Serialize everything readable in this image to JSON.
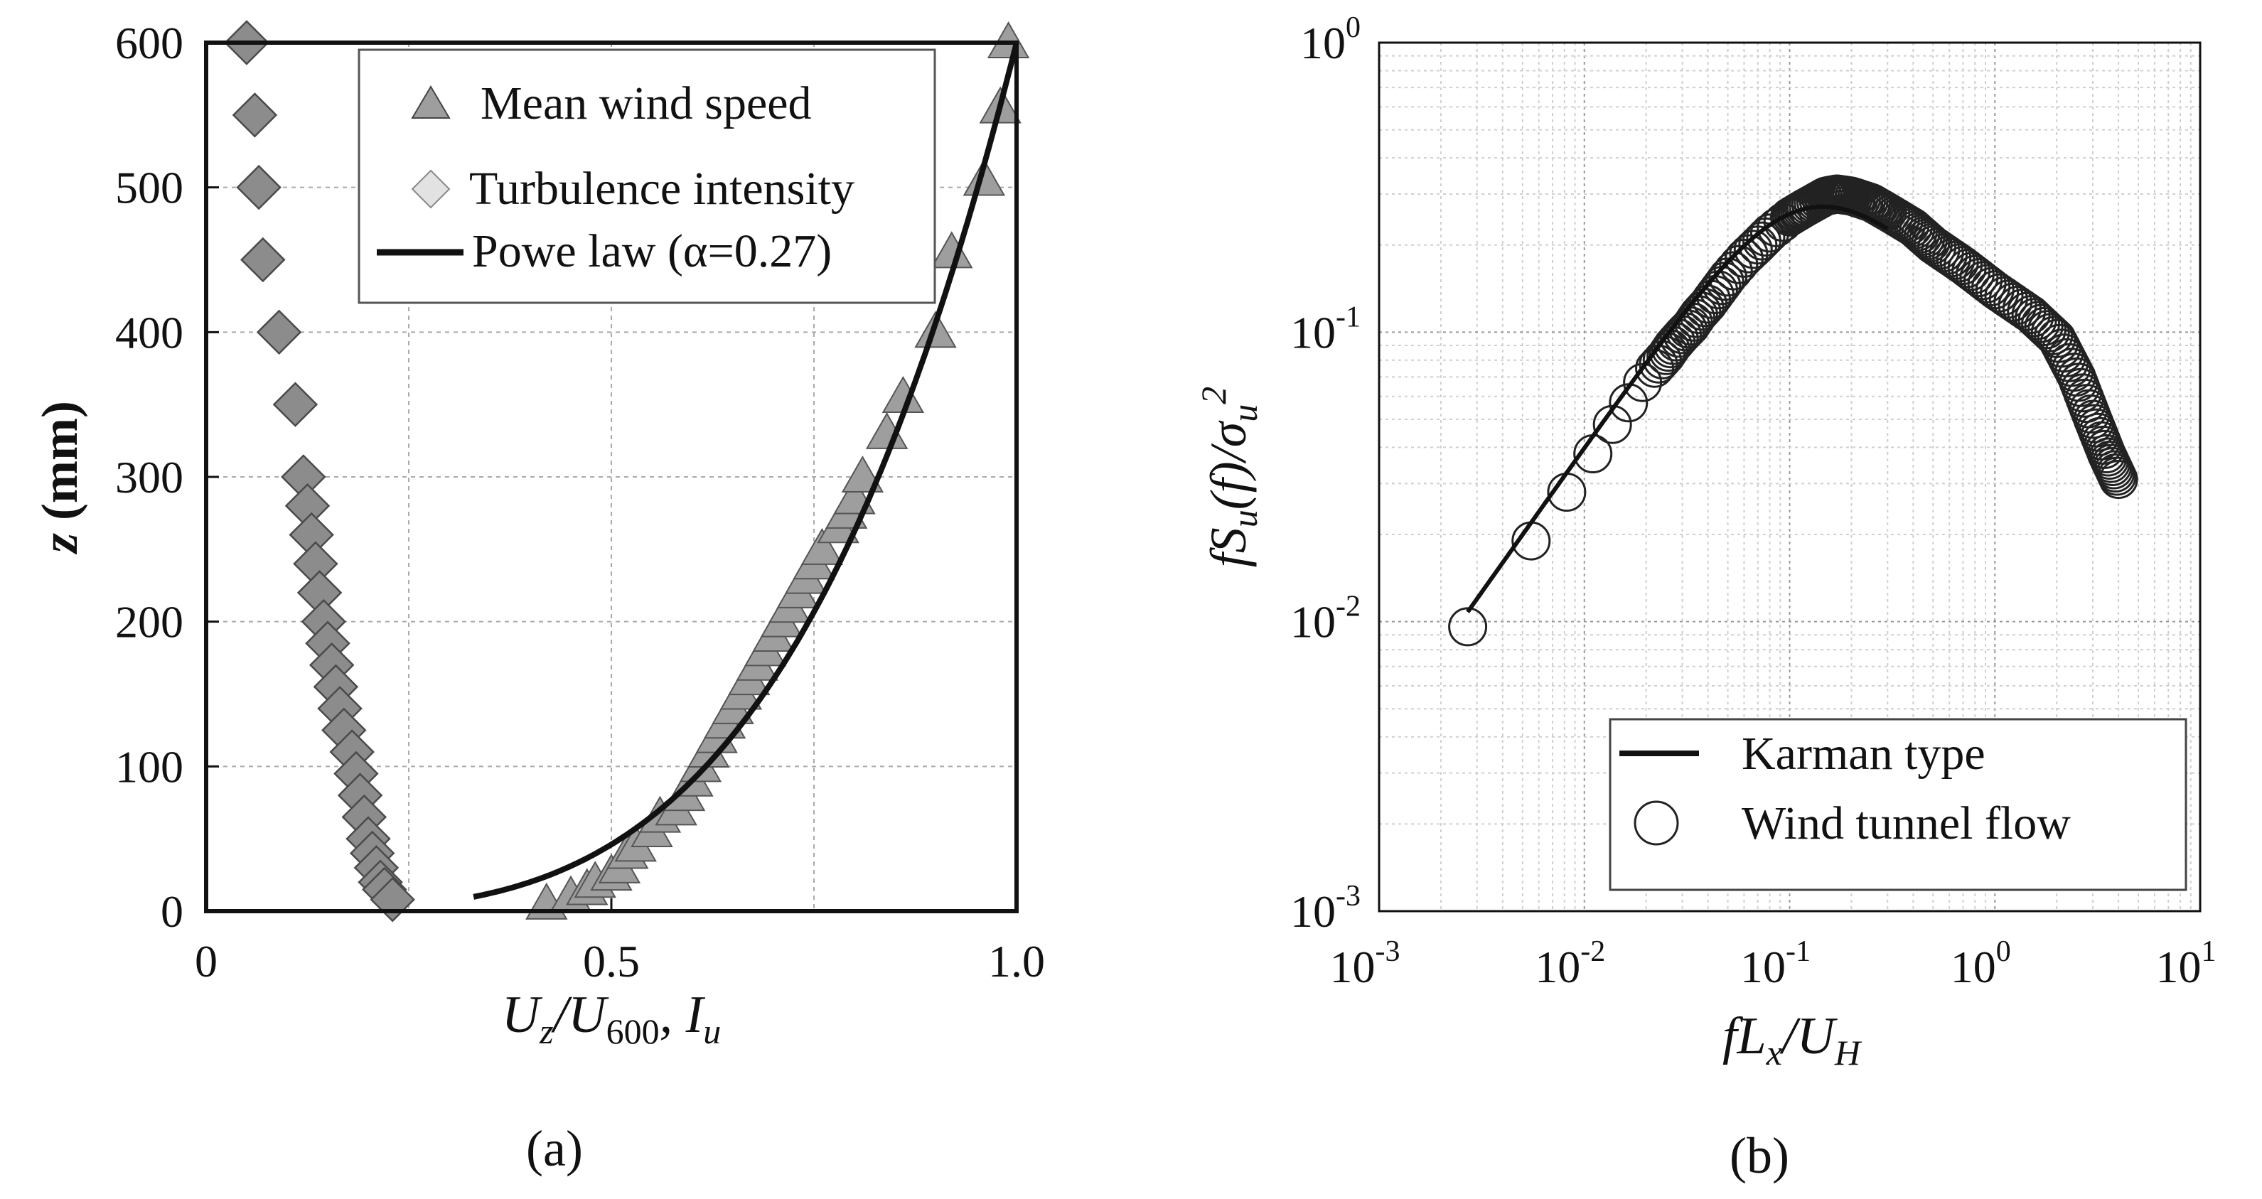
{
  "colors": {
    "triangle_fill": "#9e9e9e",
    "diamond_dark": "#8c8c8c",
    "diamond_light": "#e2e2e2",
    "grid": "#aaaaaa",
    "frame": "#111111"
  },
  "chart_data": [
    {
      "id": "a",
      "type": "scatter",
      "caption": "(a)",
      "xlabel": {
        "main": "U",
        "sub1": "z",
        "slash": "/U",
        "sub2": "600",
        "comma": ", I",
        "sub3": "u"
      },
      "ylabel": {
        "var": "z",
        "unit": " (mm)"
      },
      "xlim": [
        0,
        1.0
      ],
      "ylim": [
        0,
        600
      ],
      "x_ticks": [
        0,
        0.5,
        1.0
      ],
      "x_tick_labels": [
        "0",
        "0.5",
        "1.0"
      ],
      "y_ticks": [
        0,
        100,
        200,
        300,
        400,
        500,
        600
      ],
      "y_tick_labels": [
        "0",
        "100",
        "200",
        "300",
        "400",
        "500",
        "600"
      ],
      "grid": true,
      "legend": [
        "Mean wind speed",
        "Turbulence intensity",
        "Powe law (α=0.27)"
      ],
      "legend_loc": "top-right",
      "series": [
        {
          "name": "Mean wind speed",
          "marker": "triangle",
          "points": [
            [
              0.42,
              5
            ],
            [
              0.45,
              10
            ],
            [
              0.47,
              15
            ],
            [
              0.48,
              20
            ],
            [
              0.5,
              25
            ],
            [
              0.51,
              30
            ],
            [
              0.52,
              40
            ],
            [
              0.53,
              45
            ],
            [
              0.55,
              55
            ],
            [
              0.56,
              65
            ],
            [
              0.58,
              70
            ],
            [
              0.59,
              80
            ],
            [
              0.6,
              90
            ],
            [
              0.61,
              100
            ],
            [
              0.62,
              110
            ],
            [
              0.63,
              120
            ],
            [
              0.64,
              130
            ],
            [
              0.65,
              140
            ],
            [
              0.66,
              150
            ],
            [
              0.67,
              160
            ],
            [
              0.68,
              170
            ],
            [
              0.69,
              180
            ],
            [
              0.7,
              190
            ],
            [
              0.71,
              200
            ],
            [
              0.72,
              210
            ],
            [
              0.73,
              220
            ],
            [
              0.74,
              230
            ],
            [
              0.75,
              240
            ],
            [
              0.76,
              250
            ],
            [
              0.78,
              265
            ],
            [
              0.79,
              275
            ],
            [
              0.8,
              285
            ],
            [
              0.81,
              300
            ],
            [
              0.84,
              330
            ],
            [
              0.86,
              355
            ],
            [
              0.9,
              400
            ],
            [
              0.92,
              455
            ],
            [
              0.96,
              505
            ],
            [
              0.98,
              555
            ],
            [
              0.99,
              600
            ]
          ]
        },
        {
          "name": "Turbulence intensity",
          "marker": "diamond",
          "points": [
            [
              0.05,
              600
            ],
            [
              0.06,
              550
            ],
            [
              0.065,
              500
            ],
            [
              0.07,
              450
            ],
            [
              0.09,
              400
            ],
            [
              0.11,
              350
            ],
            [
              0.12,
              300
            ],
            [
              0.125,
              280
            ],
            [
              0.13,
              260
            ],
            [
              0.135,
              240
            ],
            [
              0.14,
              220
            ],
            [
              0.145,
              200
            ],
            [
              0.15,
              185
            ],
            [
              0.155,
              170
            ],
            [
              0.16,
              155
            ],
            [
              0.165,
              140
            ],
            [
              0.17,
              125
            ],
            [
              0.18,
              110
            ],
            [
              0.185,
              95
            ],
            [
              0.19,
              80
            ],
            [
              0.195,
              65
            ],
            [
              0.2,
              50
            ],
            [
              0.205,
              40
            ],
            [
              0.21,
              30
            ],
            [
              0.215,
              20
            ],
            [
              0.22,
              15
            ],
            [
              0.23,
              8
            ]
          ]
        },
        {
          "name": "Powe law (α=0.27)",
          "type": "line",
          "alpha": 0.27,
          "x_range": [
            0.33,
            1.0
          ],
          "formula": "x = (z/600)^0.27"
        }
      ]
    },
    {
      "id": "b",
      "type": "line",
      "caption": "(b)",
      "xlabel": {
        "f": "fL",
        "sub1": "x",
        "slash": "/U",
        "sub2": "H"
      },
      "ylabel": {
        "f": "fS",
        "sub1": "u",
        "mid": "(f)/σ",
        "sub2": "u",
        "sup": "2"
      },
      "x_scale": "log",
      "y_scale": "log",
      "xlim": [
        0.001,
        10
      ],
      "ylim": [
        0.001,
        1
      ],
      "x_tick_labels": [
        {
          "base": "10",
          "exp": "-3"
        },
        {
          "base": "10",
          "exp": "-2"
        },
        {
          "base": "10",
          "exp": "-1"
        },
        {
          "base": "10",
          "exp": "0"
        },
        {
          "base": "10",
          "exp": "1"
        }
      ],
      "y_tick_labels": [
        {
          "base": "10",
          "exp": "-3"
        },
        {
          "base": "10",
          "exp": "-2"
        },
        {
          "base": "10",
          "exp": "-1"
        },
        {
          "base": "10",
          "exp": "0"
        }
      ],
      "grid": true,
      "legend": [
        "Karman type",
        "Wind tunnel flow"
      ],
      "legend_loc": "lower-right",
      "series": [
        {
          "name": "Karman type",
          "type": "line",
          "x_range": [
            0.0027,
            0.3
          ]
        },
        {
          "name": "Wind tunnel flow",
          "marker": "circle",
          "points": [
            [
              0.0027,
              0.0096
            ],
            [
              0.0055,
              0.019
            ],
            [
              0.0082,
              0.028
            ],
            [
              0.011,
              0.038
            ],
            [
              0.0137,
              0.048
            ],
            [
              0.0164,
              0.057
            ],
            [
              0.0192,
              0.067
            ],
            [
              0.022,
              0.075
            ],
            [
              0.025,
              0.083
            ],
            [
              0.027,
              0.09
            ],
            [
              0.03,
              0.098
            ],
            [
              0.033,
              0.105
            ],
            [
              0.036,
              0.115
            ],
            [
              0.04,
              0.125
            ],
            [
              0.045,
              0.14
            ],
            [
              0.05,
              0.155
            ],
            [
              0.06,
              0.18
            ],
            [
              0.07,
              0.2
            ],
            [
              0.08,
              0.22
            ],
            [
              0.1,
              0.25
            ],
            [
              0.12,
              0.27
            ],
            [
              0.15,
              0.295
            ],
            [
              0.17,
              0.3
            ],
            [
              0.2,
              0.295
            ],
            [
              0.25,
              0.28
            ],
            [
              0.3,
              0.26
            ],
            [
              0.4,
              0.23
            ],
            [
              0.5,
              0.2
            ],
            [
              0.7,
              0.17
            ],
            [
              1.0,
              0.14
            ],
            [
              1.5,
              0.115
            ],
            [
              2.0,
              0.095
            ],
            [
              2.5,
              0.07
            ],
            [
              3.0,
              0.05
            ],
            [
              3.5,
              0.038
            ],
            [
              4.0,
              0.031
            ]
          ]
        }
      ]
    }
  ]
}
